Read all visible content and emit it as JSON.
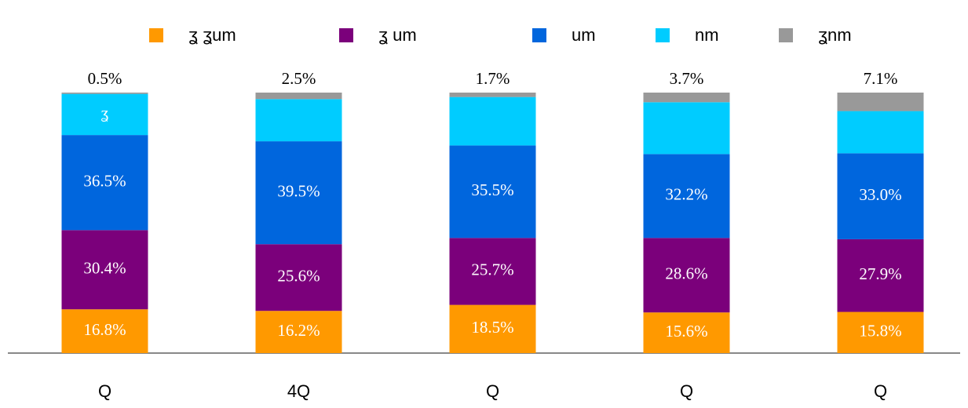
{
  "chart_data": {
    "type": "stacked_bar",
    "categories": [
      "Q",
      "4Q",
      "Q",
      "Q",
      "Q"
    ],
    "series": [
      {
        "name": "ʓ ʓum",
        "color": "#ff9900",
        "values": [
          16.8,
          16.2,
          18.5,
          15.6,
          15.8
        ],
        "value_labels": [
          "16.8%",
          "16.2%",
          "18.5%",
          "15.6%",
          "15.8%"
        ]
      },
      {
        "name": "ʓ um",
        "color": "#7b007b",
        "values": [
          30.4,
          25.6,
          25.7,
          28.6,
          27.9
        ],
        "value_labels": [
          "30.4%",
          "25.6%",
          "25.7%",
          "28.6%",
          "27.9%"
        ]
      },
      {
        "name": "um",
        "color": "#0066dd",
        "values": [
          36.5,
          39.5,
          35.5,
          32.2,
          33.0
        ],
        "value_labels": [
          "36.5%",
          "39.5%",
          "35.5%",
          "32.2%",
          "33.0%"
        ]
      },
      {
        "name": "nm",
        "color": "#00ccff",
        "values": [
          15.8,
          16.2,
          18.6,
          19.9,
          16.2
        ],
        "value_labels": [
          "ʓ",
          null,
          null,
          null,
          null
        ]
      },
      {
        "name": "ʓnm",
        "color": "#999999",
        "values": [
          0.5,
          2.5,
          1.7,
          3.7,
          7.1
        ],
        "value_labels": [
          "0.5%",
          "2.5%",
          "1.7%",
          "3.7%",
          "7.1%"
        ]
      }
    ],
    "ylim": [
      0,
      100
    ]
  }
}
